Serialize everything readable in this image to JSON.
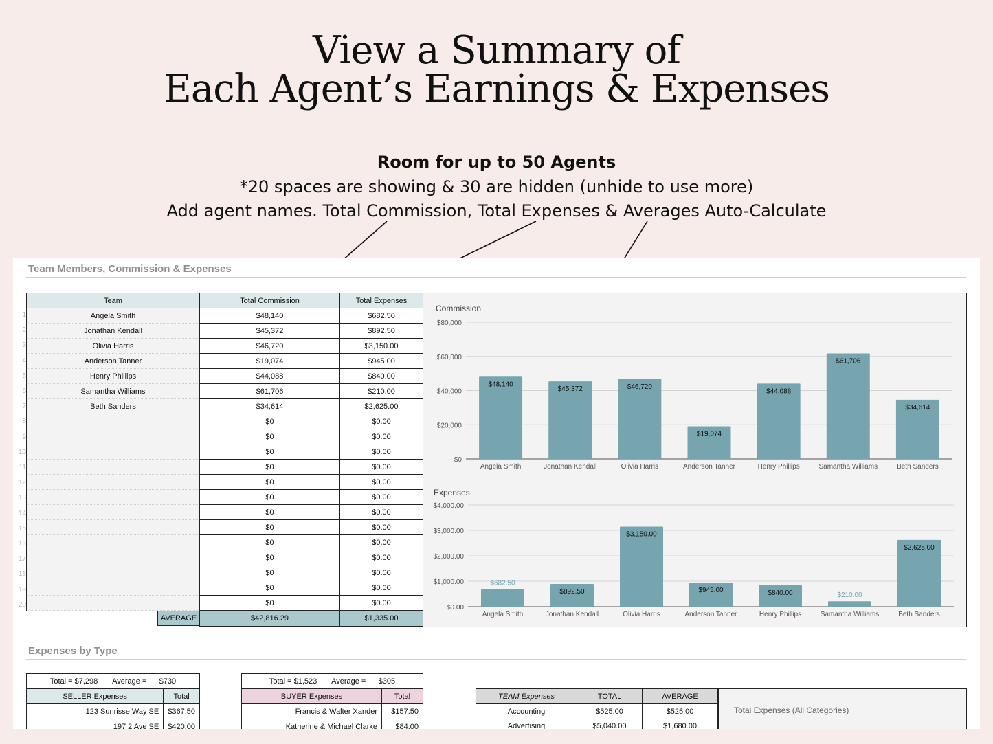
{
  "heading": {
    "line1": "View a Summary of",
    "line2": "Each Agent’s Earnings & Expenses"
  },
  "subheading": {
    "bold": "Room for up to 50 Agents",
    "line2": "*20 spaces are showing & 30 are hidden (unhide to use more)",
    "line3": "Add agent names. Total Commission, Total Expenses & Averages Auto-Calculate"
  },
  "sheet": {
    "section1_title": "Team Members, Commission & Expenses",
    "section2_title": "Expenses by Type",
    "team_table": {
      "headers": [
        "Team",
        "Total Commission",
        "Total Expenses"
      ],
      "rows": [
        {
          "num": "1",
          "name": "Angela Smith",
          "commission": "$48,140",
          "expenses": "$682.50"
        },
        {
          "num": "2",
          "name": "Jonathan Kendall",
          "commission": "$45,372",
          "expenses": "$892.50"
        },
        {
          "num": "3",
          "name": "Olivia Harris",
          "commission": "$46,720",
          "expenses": "$3,150.00"
        },
        {
          "num": "4",
          "name": "Anderson Tanner",
          "commission": "$19,074",
          "expenses": "$945.00"
        },
        {
          "num": "5",
          "name": "Henry Phillips",
          "commission": "$44,088",
          "expenses": "$840.00"
        },
        {
          "num": "6",
          "name": "Samantha Williams",
          "commission": "$61,706",
          "expenses": "$210.00"
        },
        {
          "num": "7",
          "name": "Beth Sanders",
          "commission": "$34,614",
          "expenses": "$2,625.00"
        },
        {
          "num": "8",
          "name": "",
          "commission": "$0",
          "expenses": "$0.00"
        },
        {
          "num": "9",
          "name": "",
          "commission": "$0",
          "expenses": "$0.00"
        },
        {
          "num": "10",
          "name": "",
          "commission": "$0",
          "expenses": "$0.00"
        },
        {
          "num": "11",
          "name": "",
          "commission": "$0",
          "expenses": "$0.00"
        },
        {
          "num": "12",
          "name": "",
          "commission": "$0",
          "expenses": "$0.00"
        },
        {
          "num": "13",
          "name": "",
          "commission": "$0",
          "expenses": "$0.00"
        },
        {
          "num": "14",
          "name": "",
          "commission": "$0",
          "expenses": "$0.00"
        },
        {
          "num": "15",
          "name": "",
          "commission": "$0",
          "expenses": "$0.00"
        },
        {
          "num": "16",
          "name": "",
          "commission": "$0",
          "expenses": "$0.00"
        },
        {
          "num": "17",
          "name": "",
          "commission": "$0",
          "expenses": "$0.00"
        },
        {
          "num": "18",
          "name": "",
          "commission": "$0",
          "expenses": "$0.00"
        },
        {
          "num": "19",
          "name": "",
          "commission": "$0",
          "expenses": "$0.00"
        },
        {
          "num": "20",
          "name": "",
          "commission": "$0",
          "expenses": "$0.00"
        }
      ],
      "average_label": "AVERAGE",
      "average_commission": "$42,816.29",
      "average_expenses": "$1,335.00"
    },
    "seller": {
      "total_label": "Total =",
      "total_value": "$7,298",
      "avg_label": "Average =",
      "avg_value": "$730",
      "header": "SELLER Expenses",
      "header_total": "Total",
      "rows": [
        {
          "name": "123 Sunrisse Way SE",
          "value": "$367.50"
        },
        {
          "name": "197 2 Ave SE",
          "value": "$420.00"
        }
      ]
    },
    "buyer": {
      "total_label": "Total =",
      "total_value": "$1,523",
      "avg_label": "Average =",
      "avg_value": "$305",
      "header": "BUYER Expenses",
      "header_total": "Total",
      "rows": [
        {
          "name": "Francis & Walter Xander",
          "value": "$157.50"
        },
        {
          "name": "Katherine & Michael Clarke",
          "value": "$84.00"
        }
      ]
    },
    "team_expenses": {
      "headers": [
        "TEAM Expenses",
        "TOTAL",
        "AVERAGE"
      ],
      "rows": [
        {
          "name": "Accounting",
          "total": "$525.00",
          "avg": "$525.00"
        },
        {
          "name": "Advertising",
          "total": "$5,040.00",
          "avg": "$1,680.00"
        }
      ],
      "chart_title": "Total Expenses (All Categories)"
    }
  },
  "colors": {
    "background": "#f7ecea",
    "bar": "#77a5af",
    "header_teal": "#dce8ea",
    "average_fill": "#a9c9cc",
    "buyer_pink": "#ecd3de"
  },
  "chart_data": [
    {
      "type": "bar",
      "title": "Commission",
      "categories": [
        "Angela Smith",
        "Jonathan Kendall",
        "Olivia Harris",
        "Anderson Tanner",
        "Henry Phillips",
        "Samantha Williams",
        "Beth Sanders"
      ],
      "values": [
        48140,
        45372,
        46720,
        19074,
        44088,
        61706,
        34614
      ],
      "data_labels": [
        "$48,140",
        "$45,372",
        "$46,720",
        "$19,074",
        "$44,088",
        "$61,706",
        "$34,614"
      ],
      "yticks": [
        "$0",
        "$20,000",
        "$40,000",
        "$60,000",
        "$80,000"
      ],
      "ylim": [
        0,
        80000
      ],
      "grid": true
    },
    {
      "type": "bar",
      "title": "Expenses",
      "categories": [
        "Angela Smith",
        "Jonathan Kendall",
        "Olivia Harris",
        "Anderson Tanner",
        "Henry Phillips",
        "Samantha Williams",
        "Beth Sanders"
      ],
      "values": [
        682.5,
        892.5,
        3150,
        945,
        840,
        210,
        2625
      ],
      "data_labels": [
        "$682.50",
        "$892.50",
        "$3,150.00",
        "$945.00",
        "$840.00",
        "$210.00",
        "$2,625.00"
      ],
      "yticks": [
        "$0.00",
        "$1,000.00",
        "$2,000.00",
        "$3,000.00",
        "$4,000.00"
      ],
      "ylim": [
        0,
        4000
      ],
      "grid": true
    }
  ]
}
